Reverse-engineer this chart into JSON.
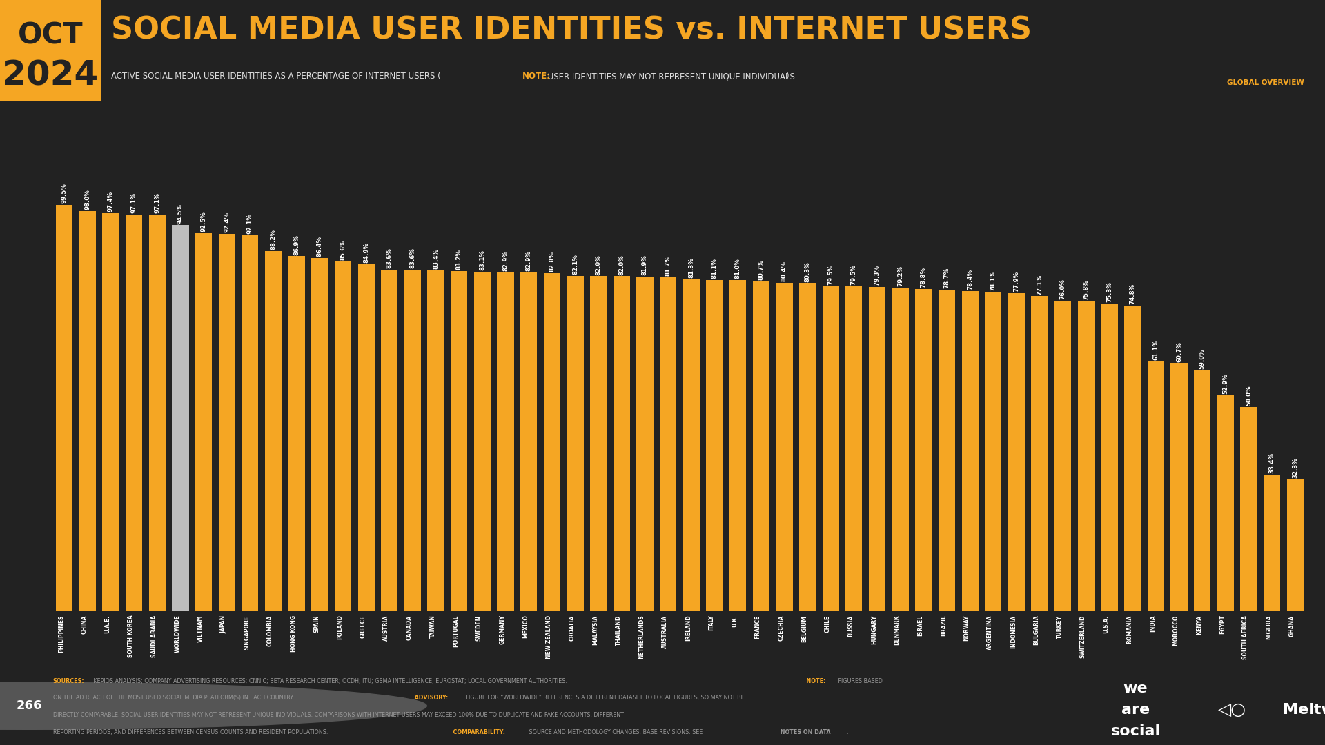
{
  "categories": [
    "PHILIPPINES",
    "CHINA",
    "U.A.E.",
    "SOUTH KOREA",
    "SAUDI ARABIA",
    "WORLDWIDE",
    "VIETNAM",
    "JAPAN",
    "SINGAPORE",
    "COLOMBIA",
    "HONG KONG",
    "SPAIN",
    "POLAND",
    "GREECE",
    "AUSTRIA",
    "CANADA",
    "TAIWAN",
    "PORTUGAL",
    "SWEDEN",
    "GERMANY",
    "MEXICO",
    "NEW ZEALAND",
    "CROATIA",
    "MALAYSIA",
    "THAILAND",
    "NETHERLANDS",
    "AUSTRALIA",
    "IRELAND",
    "ITALY",
    "U.K.",
    "FRANCE",
    "CZECHIA",
    "BELGIUM",
    "CHILE",
    "RUSSIA",
    "HUNGARY",
    "DENMARK",
    "ISRAEL",
    "BRAZIL",
    "NORWAY",
    "ARGENTINA",
    "INDONESIA",
    "BULGARIA",
    "TURKEY",
    "SWITZERLAND",
    "U.S.A.",
    "ROMANIA",
    "INDIA",
    "MOROCCO",
    "KENYA",
    "EGYPT",
    "SOUTH AFRICA",
    "NIGERIA",
    "GHANA"
  ],
  "values": [
    99.5,
    98.0,
    97.4,
    97.1,
    97.1,
    94.5,
    92.5,
    92.4,
    92.1,
    88.2,
    86.9,
    86.4,
    85.6,
    84.9,
    83.6,
    83.6,
    83.4,
    83.2,
    83.1,
    82.9,
    82.9,
    82.8,
    82.1,
    82.0,
    82.0,
    81.9,
    81.7,
    81.3,
    81.1,
    81.0,
    80.7,
    80.4,
    80.3,
    79.5,
    79.5,
    79.3,
    79.2,
    78.8,
    78.7,
    78.4,
    78.1,
    77.9,
    77.1,
    76.0,
    75.8,
    75.3,
    74.8,
    61.1,
    60.7,
    59.0,
    52.9,
    50.0,
    33.4,
    32.3
  ],
  "worldwide_index": 5,
  "bar_color": "#F5A623",
  "worldwide_color": "#BEBEBE",
  "bg_color": "#222222",
  "text_color": "#FFFFFF",
  "title": "SOCIAL MEDIA USER IDENTITIES vs. INTERNET USERS",
  "subtitle_white": "ACTIVE SOCIAL MEDIA USER IDENTITIES AS A PERCENTAGE OF INTERNET USERS (",
  "subtitle_orange": "NOTE:",
  "subtitle_orange2": " USER IDENTITIES MAY NOT REPRESENT UNIQUE INDIVIDUALS",
  "subtitle_end": ")",
  "date_line1": "OCT",
  "date_line2": "2024",
  "global_overview": "GLOBAL OVERVIEW",
  "title_color": "#F5A623",
  "note_color": "#F5A623",
  "page_number": "266",
  "footer_line1_bold": "SOURCES:",
  "footer_line1": " KEPIOS ANALYSIS; COMPANY ADVERTISING RESOURCES; CNNIC; BETA RESEARCH CENTER; OCDH; ITU; GSMA INTELLIGENCE; EUROSTAT; LOCAL GOVERNMENT AUTHORITIES.",
  "footer_line1b_bold": " NOTE:",
  "footer_line1b": " FIGURES BASED",
  "footer_line2": "ON THE AD REACH OF THE MOST USED SOCIAL MEDIA PLATFORM(S) IN EACH COUNTRY.",
  "footer_line2b_bold": " ADVISORY:",
  "footer_line2b": " FIGURE FOR “WORLDWIDE” REFERENCES A DIFFERENT DATASET TO LOCAL FIGURES, SO MAY NOT BE",
  "footer_line3": "DIRECTLY COMPARABLE. SOCIAL USER IDENTITIES MAY NOT REPRESENT UNIQUE INDIVIDUALS. COMPARISONS WITH INTERNET USERS MAY EXCEED 100% DUE TO DUPLICATE AND FAKE ACCOUNTS, DIFFERENT",
  "footer_line4": "REPORTING PERIODS, AND DIFFERENCES BETWEEN CENSUS COUNTS AND RESIDENT POPULATIONS.",
  "footer_line4b_bold": " COMPARABILITY:",
  "footer_line4b": " SOURCE AND METHODOLOGY CHANGES; BASE REVISIONS. SEE",
  "footer_line4c_ul": " NOTES ON DATA",
  "footer_line4d": "."
}
